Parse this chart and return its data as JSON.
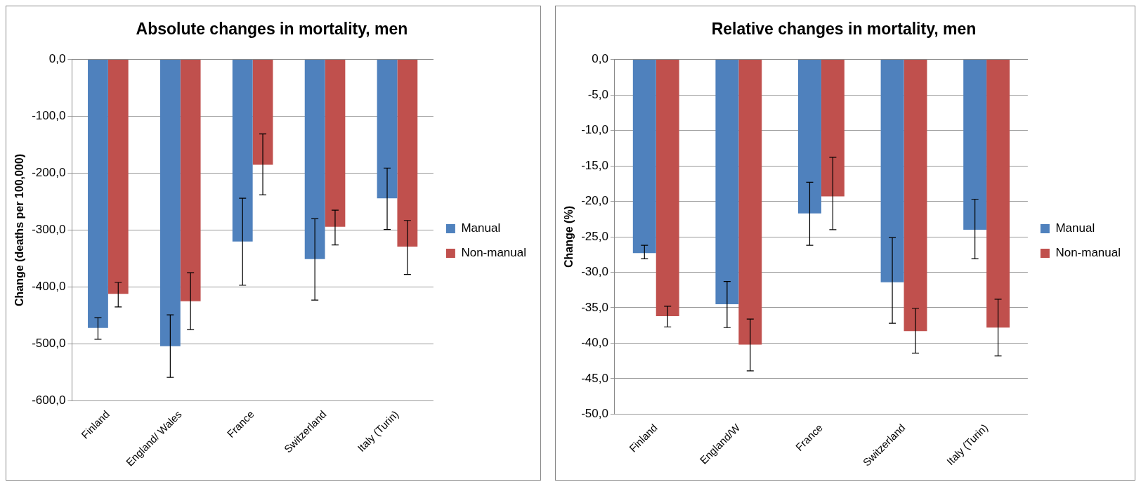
{
  "chart_data": [
    {
      "type": "bar",
      "title": "Absolute changes in mortality, men",
      "ylabel": "Change (deaths per 100,000)",
      "categories": [
        "Finland",
        "England/ Wales",
        "France",
        "Switzerland",
        "Italy (Turin)"
      ],
      "series": [
        {
          "name": "Manual",
          "color": "#4f81bd",
          "values": [
            -472,
            -504,
            -320,
            -351,
            -244
          ],
          "errors": [
            [
              -492,
              -454
            ],
            [
              -559,
              -449
            ],
            [
              -397,
              -244
            ],
            [
              -423,
              -280
            ],
            [
              -299,
              -191
            ]
          ]
        },
        {
          "name": "Non-manual",
          "color": "#c0504d",
          "values": [
            -412,
            -425,
            -185,
            -294,
            -329
          ],
          "errors": [
            [
              -435,
              -392
            ],
            [
              -475,
              -375
            ],
            [
              -238,
              -131
            ],
            [
              -326,
              -265
            ],
            [
              -378,
              -283
            ]
          ]
        }
      ],
      "ylim": [
        -600,
        0
      ],
      "yticks": [
        {
          "value": -600,
          "label": "-600,0"
        },
        {
          "value": -500,
          "label": "-500,0"
        },
        {
          "value": -400,
          "label": "-400,0"
        },
        {
          "value": -300,
          "label": "-300,0"
        },
        {
          "value": -200,
          "label": "-200,0"
        },
        {
          "value": -100,
          "label": "-100,0"
        },
        {
          "value": 0,
          "label": "0,0"
        }
      ],
      "grid": "y",
      "legend": "right"
    },
    {
      "type": "bar",
      "title": "Relative changes in mortality, men",
      "ylabel": "Change (%)",
      "categories": [
        "Finland",
        "England/W",
        "France",
        "Switzerland",
        "Italy (Turin)"
      ],
      "series": [
        {
          "name": "Manual",
          "color": "#4f81bd",
          "values": [
            -27.3,
            -34.5,
            -21.7,
            -31.4,
            -24.0
          ],
          "errors": [
            [
              -28.1,
              -26.2
            ],
            [
              -37.8,
              -31.3
            ],
            [
              -26.2,
              -17.3
            ],
            [
              -37.2,
              -25.1
            ],
            [
              -28.1,
              -19.7
            ]
          ]
        },
        {
          "name": "Non-manual",
          "color": "#c0504d",
          "values": [
            -36.2,
            -40.2,
            -19.3,
            -38.3,
            -37.8
          ],
          "errors": [
            [
              -37.7,
              -34.8
            ],
            [
              -43.9,
              -36.6
            ],
            [
              -24.0,
              -13.8
            ],
            [
              -41.4,
              -35.1
            ],
            [
              -41.8,
              -33.8
            ]
          ]
        }
      ],
      "ylim": [
        -50,
        0
      ],
      "yticks": [
        {
          "value": -50,
          "label": "-50,0"
        },
        {
          "value": -45,
          "label": "-45,0"
        },
        {
          "value": -40,
          "label": "-40,0"
        },
        {
          "value": -35,
          "label": "-35,0"
        },
        {
          "value": -30,
          "label": "-30,0"
        },
        {
          "value": -25,
          "label": "-25,0"
        },
        {
          "value": -20,
          "label": "-20,0"
        },
        {
          "value": -15,
          "label": "-15,0"
        },
        {
          "value": -10,
          "label": "-10,0"
        },
        {
          "value": -5,
          "label": "-5,0"
        },
        {
          "value": 0,
          "label": "0,0"
        }
      ],
      "grid": "y",
      "legend": "right"
    }
  ]
}
